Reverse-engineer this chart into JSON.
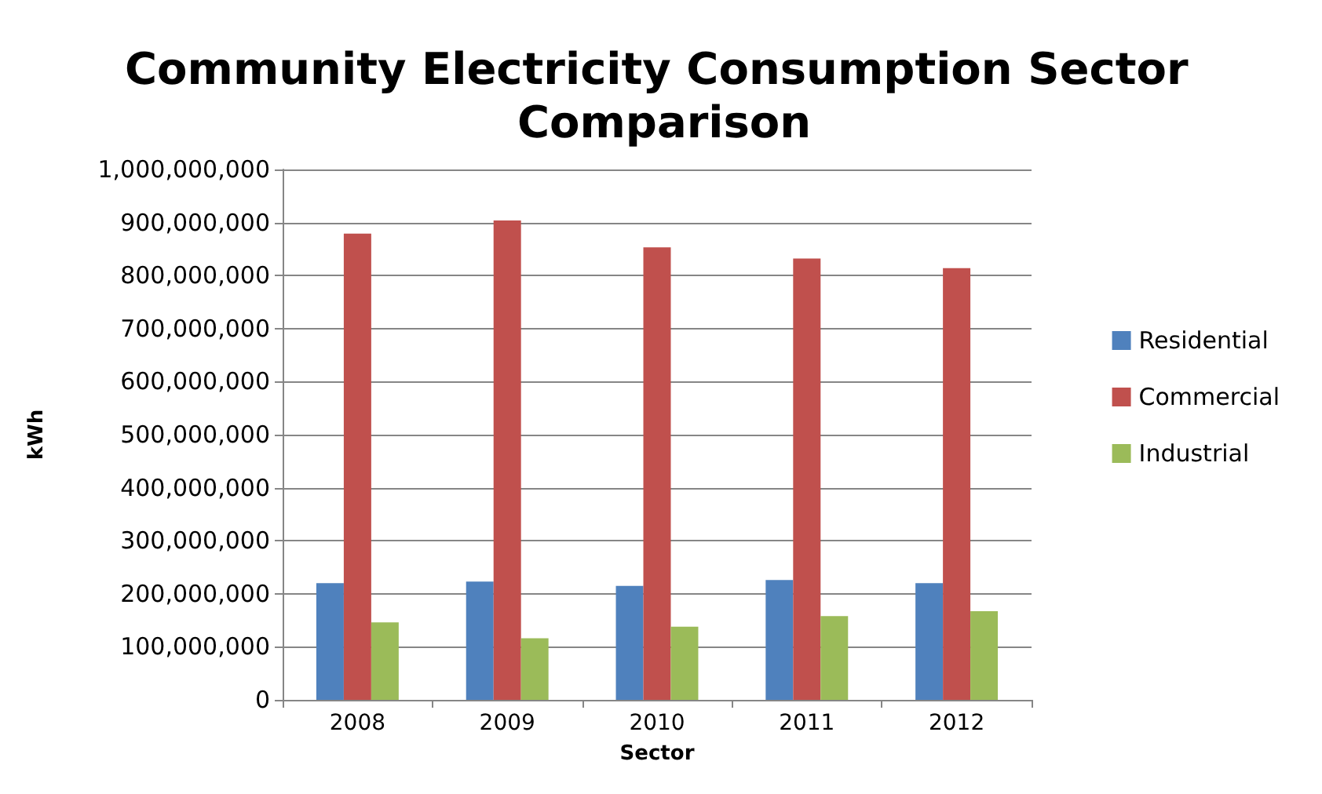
{
  "chart_data": {
    "type": "bar",
    "title": "Community Electricity Consumption Sector Comparison",
    "xlabel": "Sector",
    "ylabel": "kWh",
    "categories": [
      "2008",
      "2009",
      "2010",
      "2011",
      "2012"
    ],
    "series": [
      {
        "name": "Residential",
        "color": "#4f81bd",
        "values": [
          220000000,
          223000000,
          215000000,
          226000000,
          220000000
        ]
      },
      {
        "name": "Commercial",
        "color": "#c0504d",
        "values": [
          879000000,
          904000000,
          853000000,
          832000000,
          814000000
        ]
      },
      {
        "name": "Industrial",
        "color": "#9bbb59",
        "values": [
          146000000,
          116000000,
          138000000,
          158000000,
          167000000
        ]
      }
    ],
    "ylim": [
      0,
      1000000000
    ],
    "yticks": [
      0,
      {
        "value": 100000000,
        "label": "100,000,000"
      },
      {
        "value": 200000000,
        "label": "200,000,000"
      },
      {
        "value": 300000000,
        "label": "300,000,000"
      },
      {
        "value": 400000000,
        "label": "400,000,000"
      },
      {
        "value": 500000000,
        "label": "500,000,000"
      },
      {
        "value": 600000000,
        "label": "600,000,000"
      },
      {
        "value": 700000000,
        "label": "700,000,000"
      },
      {
        "value": 800000000,
        "label": "800,000,000"
      },
      {
        "value": 900000000,
        "label": "900,000,000"
      },
      {
        "value": 1000000000,
        "label": "1,000,000,000"
      }
    ],
    "grid": "y",
    "legend": "right"
  }
}
